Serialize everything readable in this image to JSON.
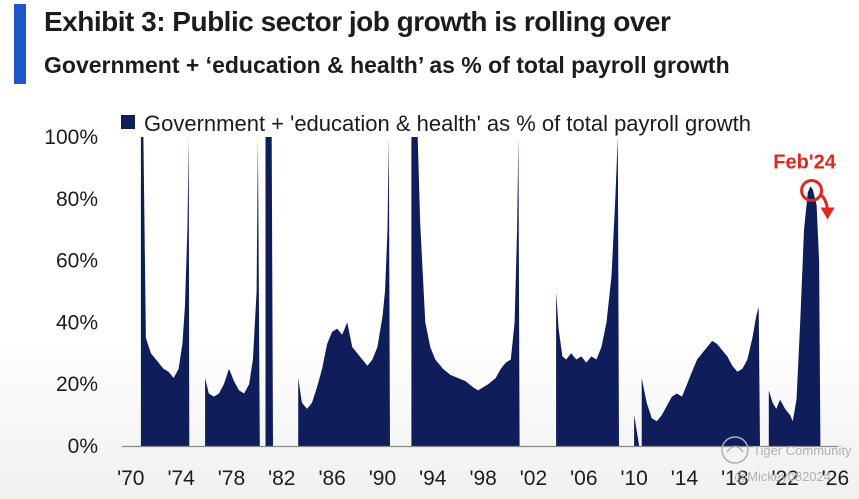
{
  "header": {
    "title": "Exhibit 3: Public sector job growth is rolling over",
    "subtitle": "Government + ‘education & health’ as % of total payroll growth"
  },
  "colors": {
    "navy": "#0f1e5a",
    "accent_blue": "#1f57c8",
    "red": "#e0271d",
    "text": "#1c1c1c",
    "axis": "#888888",
    "watermark": "#b0b0b0"
  },
  "watermark": {
    "line1": "Tiger Community",
    "line2": "@Mickey082024"
  },
  "chart_data": {
    "type": "area",
    "title": "Exhibit 3: Public sector job growth is rolling over",
    "subtitle": "Government + ‘education & health’ as % of total payroll growth",
    "legend": "Government + 'education & health' as % of total payroll growth",
    "legend_position": "top",
    "xlabel": "",
    "ylabel": "",
    "xlim": [
      1969.3,
      2026.2
    ],
    "ylim": [
      0,
      100
    ],
    "y_ticks": [
      0,
      20,
      40,
      60,
      80,
      100
    ],
    "y_tick_labels": [
      "0%",
      "20%",
      "40%",
      "60%",
      "80%",
      "100%"
    ],
    "x_ticks": [
      1970,
      1974,
      1978,
      1982,
      1986,
      1990,
      1994,
      1998,
      2002,
      2006,
      2010,
      2014,
      2018,
      2022,
      2026
    ],
    "x_tick_labels": [
      "'70",
      "'74",
      "'78",
      "'82",
      "'86",
      "'90",
      "'94",
      "'98",
      "'02",
      "'06",
      "'10",
      "'14",
      "'18",
      "'22",
      "'26"
    ],
    "grid": false,
    "annotation": {
      "label": "Feb'24",
      "x": 2024.1,
      "y": 83,
      "note": "down arrow"
    },
    "series": [
      {
        "name": "Government + 'education & health' as % of total payroll growth",
        "segments": [
          [
            [
              1970.8,
              0
            ],
            [
              1970.8,
              100
            ],
            [
              1971.0,
              100
            ],
            [
              1971.2,
              35
            ],
            [
              1971.6,
              30
            ],
            [
              1972.2,
              27
            ],
            [
              1972.6,
              25
            ],
            [
              1973.0,
              24
            ],
            [
              1973.4,
              22
            ],
            [
              1973.8,
              25
            ],
            [
              1974.1,
              33
            ],
            [
              1974.3,
              45
            ],
            [
              1974.5,
              70
            ],
            [
              1974.6,
              100
            ],
            [
              1974.65,
              0
            ]
          ],
          [
            [
              1975.9,
              0
            ],
            [
              1975.9,
              22
            ],
            [
              1976.2,
              17
            ],
            [
              1976.6,
              16
            ],
            [
              1977.0,
              17
            ],
            [
              1977.4,
              20
            ],
            [
              1977.8,
              25
            ],
            [
              1978.2,
              21
            ],
            [
              1978.6,
              18
            ],
            [
              1979.0,
              17
            ],
            [
              1979.4,
              20
            ],
            [
              1979.7,
              28
            ],
            [
              1980.0,
              50
            ],
            [
              1980.1,
              100
            ],
            [
              1980.25,
              0
            ]
          ],
          [
            [
              1980.7,
              0
            ],
            [
              1980.7,
              100
            ],
            [
              1981.2,
              100
            ],
            [
              1981.3,
              0
            ]
          ],
          [
            [
              1983.3,
              0
            ],
            [
              1983.3,
              22
            ],
            [
              1983.6,
              14
            ],
            [
              1984.0,
              12
            ],
            [
              1984.4,
              14
            ],
            [
              1984.8,
              19
            ],
            [
              1985.2,
              25
            ],
            [
              1985.6,
              33
            ],
            [
              1986.0,
              37
            ],
            [
              1986.4,
              38
            ],
            [
              1986.8,
              36
            ],
            [
              1987.2,
              40
            ],
            [
              1987.6,
              32
            ],
            [
              1988.0,
              30
            ],
            [
              1988.4,
              28
            ],
            [
              1988.8,
              26
            ],
            [
              1989.2,
              28
            ],
            [
              1989.6,
              32
            ],
            [
              1990.0,
              42
            ],
            [
              1990.2,
              50
            ],
            [
              1990.4,
              70
            ],
            [
              1990.5,
              100
            ],
            [
              1990.6,
              0
            ]
          ],
          [
            [
              1992.3,
              0
            ],
            [
              1992.3,
              100
            ],
            [
              1992.8,
              100
            ],
            [
              1993.0,
              72
            ],
            [
              1993.4,
              40
            ],
            [
              1993.8,
              32
            ],
            [
              1994.2,
              28
            ],
            [
              1994.8,
              25
            ],
            [
              1995.4,
              23
            ],
            [
              1996.0,
              22
            ],
            [
              1996.6,
              21
            ],
            [
              1997.2,
              19
            ],
            [
              1997.6,
              18
            ],
            [
              1998.0,
              19
            ],
            [
              1998.4,
              20
            ],
            [
              1999.0,
              22
            ],
            [
              1999.4,
              25
            ],
            [
              1999.8,
              27
            ],
            [
              2000.2,
              28
            ],
            [
              2000.5,
              40
            ],
            [
              2000.7,
              70
            ],
            [
              2000.8,
              100
            ],
            [
              2000.9,
              0
            ]
          ],
          [
            [
              2003.8,
              0
            ],
            [
              2003.8,
              50
            ],
            [
              2004.0,
              38
            ],
            [
              2004.3,
              29
            ],
            [
              2004.6,
              28
            ],
            [
              2005.0,
              30
            ],
            [
              2005.4,
              28
            ],
            [
              2005.8,
              29
            ],
            [
              2006.2,
              27
            ],
            [
              2006.6,
              29
            ],
            [
              2007.0,
              28
            ],
            [
              2007.4,
              32
            ],
            [
              2007.8,
              40
            ],
            [
              2008.2,
              55
            ],
            [
              2008.5,
              80
            ],
            [
              2008.7,
              100
            ],
            [
              2008.8,
              0
            ]
          ],
          [
            [
              2010.0,
              0
            ],
            [
              2010.0,
              10
            ],
            [
              2010.2,
              5
            ],
            [
              2010.4,
              0
            ]
          ],
          [
            [
              2010.6,
              0
            ],
            [
              2010.6,
              22
            ],
            [
              2011.0,
              14
            ],
            [
              2011.4,
              9
            ],
            [
              2011.8,
              8
            ],
            [
              2012.2,
              10
            ],
            [
              2012.6,
              13
            ],
            [
              2013.0,
              16
            ],
            [
              2013.4,
              17
            ],
            [
              2013.8,
              16
            ],
            [
              2014.2,
              20
            ],
            [
              2014.6,
              24
            ],
            [
              2015.0,
              28
            ],
            [
              2015.4,
              30
            ],
            [
              2015.8,
              32
            ],
            [
              2016.2,
              34
            ],
            [
              2016.6,
              33
            ],
            [
              2017.0,
              31
            ],
            [
              2017.4,
              29
            ],
            [
              2017.8,
              26
            ],
            [
              2018.2,
              24
            ],
            [
              2018.6,
              25
            ],
            [
              2019.0,
              28
            ],
            [
              2019.4,
              35
            ],
            [
              2019.7,
              42
            ],
            [
              2019.9,
              45
            ],
            [
              2020.0,
              0
            ]
          ],
          [
            [
              2020.7,
              0
            ],
            [
              2020.7,
              18
            ],
            [
              2021.0,
              14
            ],
            [
              2021.3,
              12
            ],
            [
              2021.6,
              15
            ],
            [
              2022.0,
              12
            ],
            [
              2022.4,
              10
            ],
            [
              2022.6,
              8
            ],
            [
              2022.9,
              15
            ],
            [
              2023.2,
              40
            ],
            [
              2023.5,
              70
            ],
            [
              2023.8,
              82
            ],
            [
              2024.0,
              84
            ],
            [
              2024.2,
              83
            ],
            [
              2024.5,
              78
            ],
            [
              2024.7,
              60
            ],
            [
              2024.8,
              0
            ]
          ]
        ]
      }
    ]
  }
}
